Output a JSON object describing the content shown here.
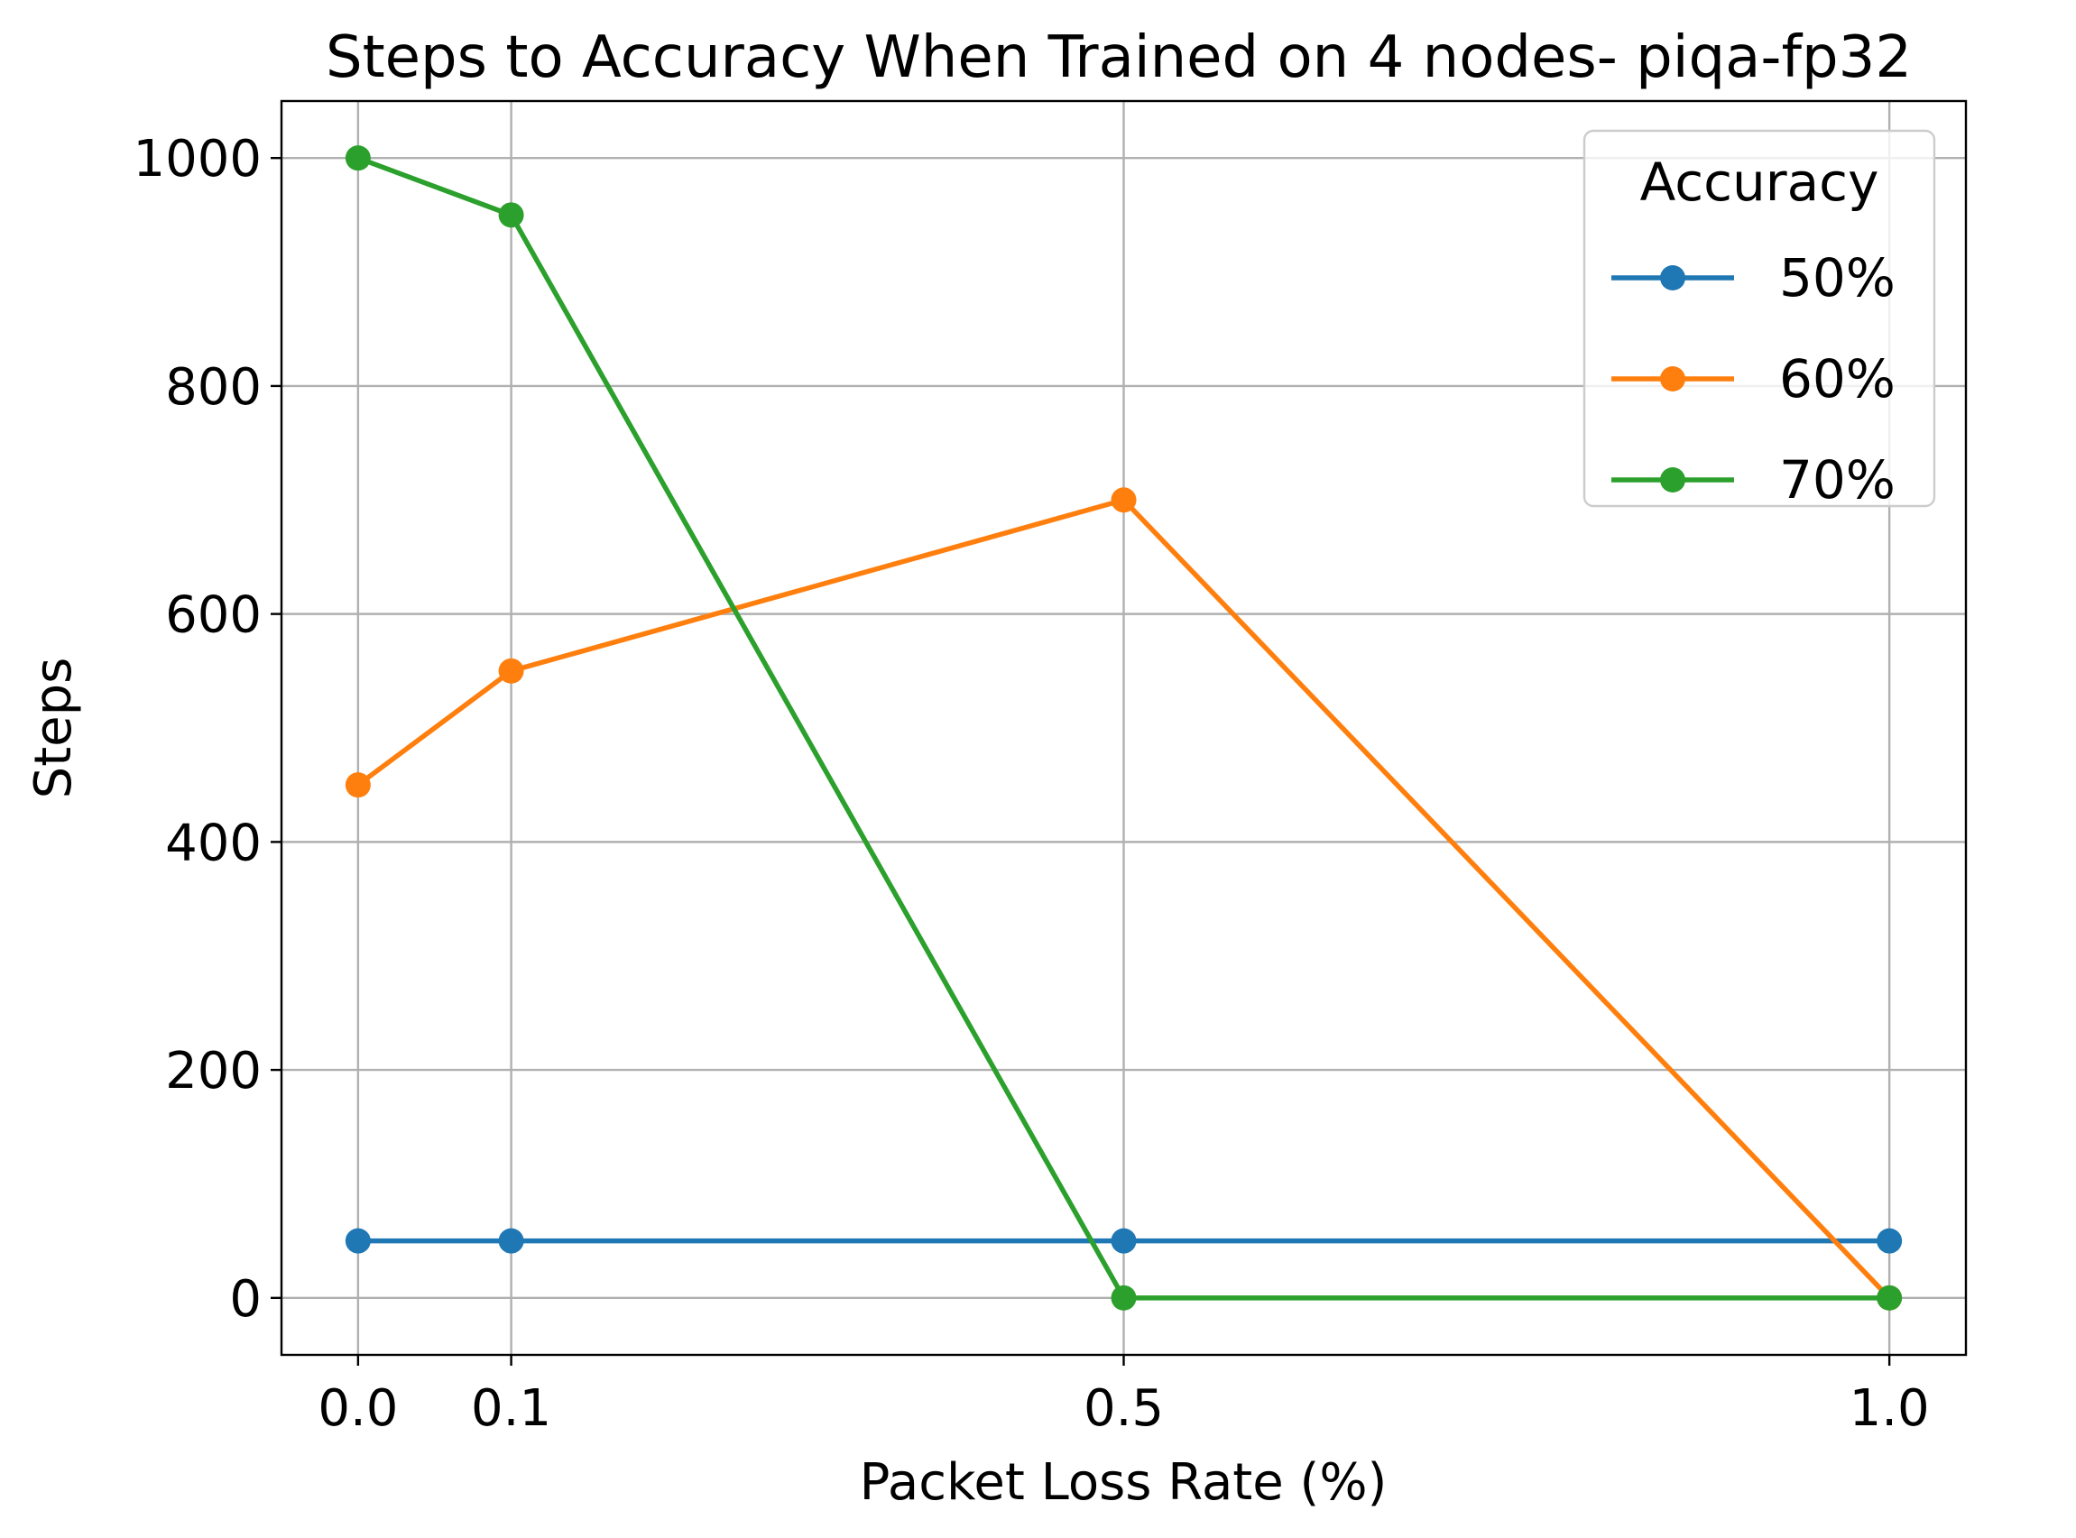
{
  "chart_data": {
    "type": "line",
    "title": "Steps to Accuracy When Trained on 4 nodes- piqa-fp32",
    "xlabel": "Packet Loss Rate (%)",
    "ylabel": "Steps",
    "x": [
      0.0,
      0.1,
      0.5,
      1.0
    ],
    "xticks": [
      "0.0",
      "0.1",
      "0.5",
      "1.0"
    ],
    "yticks": [
      "0",
      "200",
      "400",
      "600",
      "800",
      "1000"
    ],
    "xlim": [
      -0.05,
      1.05
    ],
    "ylim": [
      -50,
      1050
    ],
    "grid": true,
    "legend": {
      "title": "Accuracy",
      "placement": "top-right"
    },
    "series": [
      {
        "name": "50%",
        "color": "#1f77b4",
        "values": [
          50,
          50,
          50,
          50
        ]
      },
      {
        "name": "60%",
        "color": "#ff7f0e",
        "values": [
          450,
          550,
          700,
          0
        ]
      },
      {
        "name": "70%",
        "color": "#2ca02c",
        "values": [
          1000,
          950,
          0,
          0
        ]
      }
    ]
  }
}
